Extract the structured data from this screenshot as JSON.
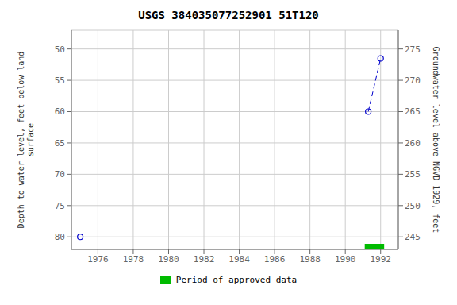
{
  "chart_data": {
    "type": "scatter",
    "title": "USGS 384035077252901 51T120",
    "xlim": [
      1974.5,
      1993.0
    ],
    "xticks": [
      1976,
      1978,
      1980,
      1982,
      1984,
      1986,
      1988,
      1990,
      1992
    ],
    "ylim": [
      82,
      47
    ],
    "yticks": [
      50,
      55,
      60,
      65,
      70,
      75,
      80
    ],
    "y2lim": [
      243,
      278
    ],
    "y2ticks": [
      245,
      250,
      255,
      260,
      265,
      270,
      275
    ],
    "ylabel": "Depth to water level, feet below land\nsurface",
    "y2label": "Groundwater level above NGVD 1929, feet",
    "grid": true,
    "legend": "bottom",
    "series": [
      {
        "x": [
          1975.0
        ],
        "values": [
          80.0
        ],
        "color": "#0000cc",
        "marker": "open_circle",
        "line_style": "none"
      },
      {
        "x": [
          1991.3,
          1992.0
        ],
        "values": [
          60.0,
          51.5
        ],
        "color": "#0000cc",
        "marker": "open_circle",
        "line_style": "dashed"
      }
    ],
    "period": {
      "label": "Period of approved data",
      "color": "#00bb00",
      "x": [
        1991.1,
        1992.2
      ]
    }
  }
}
